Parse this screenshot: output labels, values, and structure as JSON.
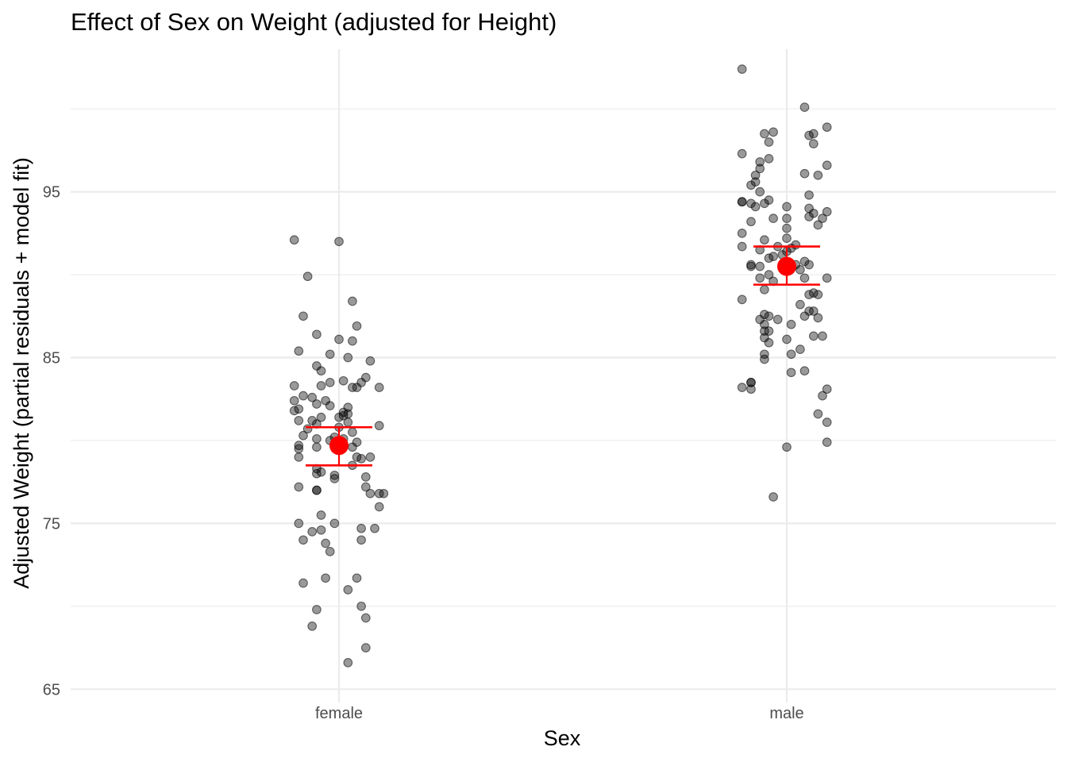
{
  "chart_data": {
    "type": "scatter",
    "title": "Effect of Sex on Weight (adjusted for Height)",
    "xlabel": "Sex",
    "ylabel": "Adjusted Weight (partial residuals + model fit)",
    "categories": [
      "female",
      "male"
    ],
    "ylim": [
      64.2,
      103.6
    ],
    "yticks": [
      65,
      75,
      85,
      95
    ],
    "grid": true,
    "colors": {
      "points": "#000000",
      "fit": "#ff0000"
    },
    "series": [
      {
        "category": "female",
        "points": [
          [
            -0.1,
            92.1
          ],
          [
            0.0,
            92.0
          ],
          [
            -0.07,
            89.9
          ],
          [
            0.03,
            88.4
          ],
          [
            -0.08,
            87.5
          ],
          [
            0.04,
            86.9
          ],
          [
            -0.05,
            86.4
          ],
          [
            0.0,
            86.1
          ],
          [
            0.03,
            86.0
          ],
          [
            -0.09,
            85.4
          ],
          [
            -0.02,
            85.2
          ],
          [
            0.02,
            85.0
          ],
          [
            0.07,
            84.8
          ],
          [
            -0.05,
            84.5
          ],
          [
            -0.04,
            84.2
          ],
          [
            0.06,
            83.8
          ],
          [
            0.01,
            83.6
          ],
          [
            -0.02,
            83.5
          ],
          [
            0.05,
            83.5
          ],
          [
            -0.04,
            83.3
          ],
          [
            -0.1,
            83.3
          ],
          [
            0.09,
            83.2
          ],
          [
            0.03,
            83.2
          ],
          [
            0.04,
            83.2
          ],
          [
            -0.08,
            82.7
          ],
          [
            -0.06,
            82.6
          ],
          [
            -0.1,
            82.4
          ],
          [
            -0.03,
            82.4
          ],
          [
            -0.05,
            82.2
          ],
          [
            -0.02,
            82.1
          ],
          [
            -0.09,
            81.9
          ],
          [
            0.02,
            82.0
          ],
          [
            -0.1,
            81.8
          ],
          [
            0.01,
            81.7
          ],
          [
            0.02,
            81.6
          ],
          [
            0.01,
            81.5
          ],
          [
            0.0,
            81.4
          ],
          [
            -0.04,
            81.4
          ],
          [
            -0.06,
            81.2
          ],
          [
            -0.09,
            81.2
          ],
          [
            -0.05,
            81.0
          ],
          [
            0.02,
            81.1
          ],
          [
            0.0,
            80.8
          ],
          [
            -0.07,
            80.7
          ],
          [
            0.09,
            80.9
          ],
          [
            -0.08,
            80.3
          ],
          [
            0.03,
            80.5
          ],
          [
            -0.05,
            80.1
          ],
          [
            -0.01,
            80.2
          ],
          [
            0.01,
            80.1
          ],
          [
            -0.02,
            80.0
          ],
          [
            0.04,
            79.9
          ],
          [
            -0.09,
            79.7
          ],
          [
            -0.05,
            79.6
          ],
          [
            -0.09,
            79.5
          ],
          [
            0.03,
            79.6
          ],
          [
            -0.09,
            79.0
          ],
          [
            0.04,
            79.0
          ],
          [
            0.07,
            79.0
          ],
          [
            0.05,
            78.9
          ],
          [
            0.03,
            78.5
          ],
          [
            -0.05,
            78.3
          ],
          [
            -0.04,
            78.1
          ],
          [
            -0.05,
            78.0
          ],
          [
            -0.01,
            77.9
          ],
          [
            0.06,
            77.8
          ],
          [
            -0.01,
            77.7
          ],
          [
            -0.09,
            77.2
          ],
          [
            0.06,
            77.2
          ],
          [
            -0.05,
            77.0
          ],
          [
            -0.05,
            77.0
          ],
          [
            0.07,
            76.8
          ],
          [
            0.09,
            76.8
          ],
          [
            0.1,
            76.8
          ],
          [
            0.09,
            76.0
          ],
          [
            -0.09,
            75.0
          ],
          [
            -0.04,
            75.5
          ],
          [
            -0.01,
            75.0
          ],
          [
            0.05,
            74.7
          ],
          [
            0.08,
            74.7
          ],
          [
            -0.06,
            74.5
          ],
          [
            -0.04,
            74.6
          ],
          [
            -0.08,
            74.0
          ],
          [
            0.05,
            74.0
          ],
          [
            -0.03,
            73.8
          ],
          [
            -0.02,
            73.3
          ],
          [
            -0.08,
            71.4
          ],
          [
            -0.03,
            71.7
          ],
          [
            0.04,
            71.7
          ],
          [
            0.02,
            71.0
          ],
          [
            0.05,
            70.0
          ],
          [
            -0.05,
            69.8
          ],
          [
            0.06,
            69.3
          ],
          [
            -0.06,
            68.8
          ],
          [
            0.06,
            67.5
          ],
          [
            0.02,
            66.6
          ]
        ]
      },
      {
        "category": "male",
        "points": [
          [
            -0.1,
            102.4
          ],
          [
            0.04,
            100.1
          ],
          [
            0.09,
            98.9
          ],
          [
            -0.03,
            98.6
          ],
          [
            0.06,
            98.5
          ],
          [
            0.05,
            98.4
          ],
          [
            -0.05,
            98.5
          ],
          [
            0.06,
            97.9
          ],
          [
            -0.04,
            98.0
          ],
          [
            -0.1,
            97.3
          ],
          [
            -0.06,
            96.8
          ],
          [
            -0.04,
            97.0
          ],
          [
            -0.06,
            96.4
          ],
          [
            0.09,
            96.6
          ],
          [
            0.04,
            96.1
          ],
          [
            -0.07,
            96.0
          ],
          [
            0.07,
            96.0
          ],
          [
            -0.08,
            95.4
          ],
          [
            -0.07,
            95.6
          ],
          [
            -0.06,
            95.0
          ],
          [
            0.05,
            94.8
          ],
          [
            -0.04,
            94.5
          ],
          [
            -0.08,
            94.3
          ],
          [
            -0.1,
            94.4
          ],
          [
            -0.1,
            94.4
          ],
          [
            -0.05,
            94.3
          ],
          [
            -0.07,
            94.1
          ],
          [
            0.0,
            94.1
          ],
          [
            0.05,
            94.0
          ],
          [
            0.09,
            93.8
          ],
          [
            0.06,
            93.7
          ],
          [
            0.05,
            93.5
          ],
          [
            0.08,
            93.4
          ],
          [
            -0.03,
            93.4
          ],
          [
            0.0,
            93.4
          ],
          [
            -0.08,
            93.2
          ],
          [
            0.07,
            93.0
          ],
          [
            0.0,
            92.8
          ],
          [
            -0.1,
            92.5
          ],
          [
            -0.05,
            92.1
          ],
          [
            0.0,
            92.2
          ],
          [
            0.02,
            91.8
          ],
          [
            -0.1,
            91.7
          ],
          [
            -0.02,
            91.7
          ],
          [
            -0.06,
            91.5
          ],
          [
            0.01,
            91.6
          ],
          [
            0.0,
            91.4
          ],
          [
            -0.01,
            91.2
          ],
          [
            -0.03,
            91.1
          ],
          [
            -0.04,
            91.0
          ],
          [
            0.04,
            90.8
          ],
          [
            0.02,
            90.6
          ],
          [
            0.05,
            90.6
          ],
          [
            -0.08,
            90.6
          ],
          [
            -0.08,
            90.5
          ],
          [
            -0.06,
            90.5
          ],
          [
            0.03,
            90.3
          ],
          [
            -0.04,
            90.0
          ],
          [
            -0.06,
            89.8
          ],
          [
            0.04,
            89.8
          ],
          [
            0.09,
            89.8
          ],
          [
            -0.03,
            89.6
          ],
          [
            -0.05,
            89.1
          ],
          [
            0.06,
            88.9
          ],
          [
            0.05,
            88.8
          ],
          [
            0.07,
            88.8
          ],
          [
            -0.1,
            88.5
          ],
          [
            0.03,
            88.2
          ],
          [
            0.05,
            87.8
          ],
          [
            0.06,
            87.8
          ],
          [
            0.04,
            87.5
          ],
          [
            -0.05,
            87.6
          ],
          [
            -0.04,
            87.5
          ],
          [
            -0.06,
            87.3
          ],
          [
            0.07,
            87.4
          ],
          [
            -0.02,
            87.3
          ],
          [
            -0.05,
            87.0
          ],
          [
            0.01,
            87.0
          ],
          [
            -0.05,
            86.6
          ],
          [
            -0.04,
            86.6
          ],
          [
            0.06,
            86.3
          ],
          [
            0.08,
            86.3
          ],
          [
            -0.05,
            86.2
          ],
          [
            0.0,
            86.1
          ],
          [
            -0.04,
            85.9
          ],
          [
            0.03,
            85.5
          ],
          [
            0.01,
            85.2
          ],
          [
            -0.05,
            85.2
          ],
          [
            -0.05,
            84.9
          ],
          [
            0.04,
            84.2
          ],
          [
            0.01,
            84.1
          ],
          [
            -0.08,
            83.5
          ],
          [
            -0.08,
            83.5
          ],
          [
            -0.1,
            83.2
          ],
          [
            -0.08,
            83.1
          ],
          [
            0.09,
            83.1
          ],
          [
            0.08,
            82.7
          ],
          [
            0.07,
            81.6
          ],
          [
            0.09,
            81.1
          ],
          [
            0.09,
            79.9
          ],
          [
            0.0,
            79.6
          ],
          [
            -0.03,
            76.6
          ]
        ]
      }
    ],
    "fit": [
      {
        "category": "female",
        "y": 79.7,
        "lower": 78.5,
        "upper": 80.8
      },
      {
        "category": "male",
        "y": 90.5,
        "lower": 89.4,
        "upper": 91.7
      }
    ]
  }
}
